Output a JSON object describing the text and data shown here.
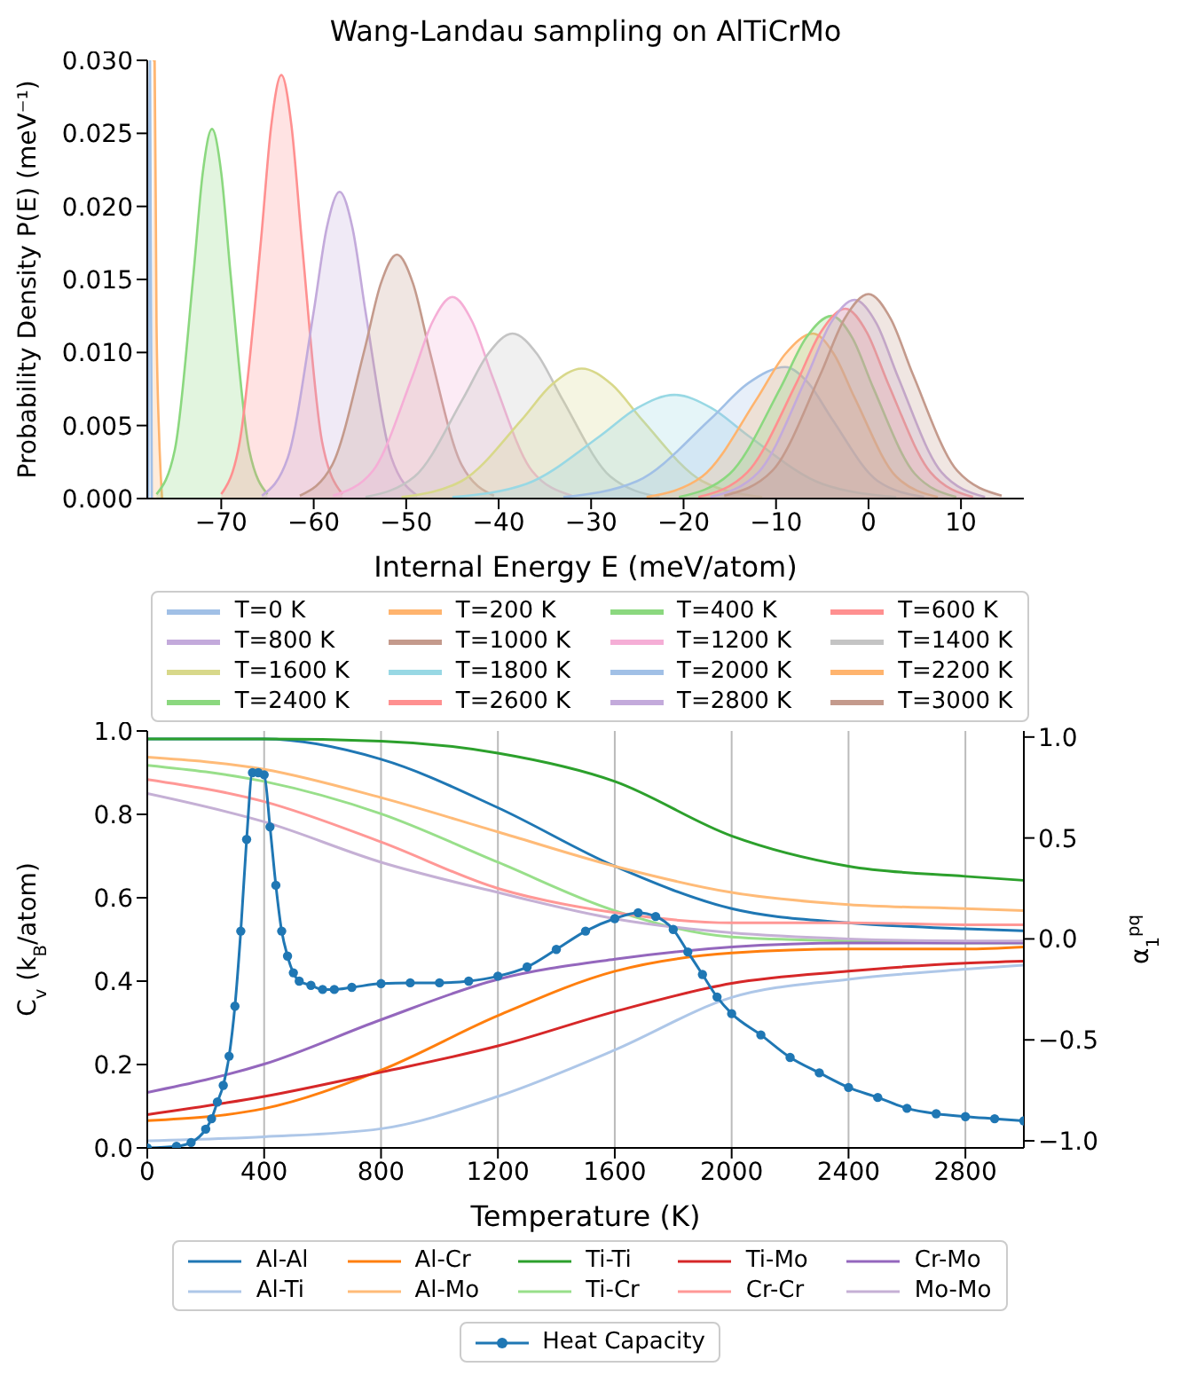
{
  "chart_data": [
    {
      "type": "area",
      "title": "Wang-Landau sampling on AlTiCrMo",
      "xlabel": "Internal Energy E (meV/atom)",
      "ylabel": "Probability Density P(E) (meV⁻¹)",
      "xlim": [
        -78,
        16.8
      ],
      "ylim": [
        0,
        0.03
      ],
      "xticks": [
        {
          "value": -70,
          "label": "−70"
        },
        {
          "value": -60,
          "label": "−60"
        },
        {
          "value": -50,
          "label": "−50"
        },
        {
          "value": -40,
          "label": "−40"
        },
        {
          "value": -30,
          "label": "−30"
        },
        {
          "value": -20,
          "label": "−20"
        },
        {
          "value": -10,
          "label": "−10"
        },
        0,
        10
      ],
      "yticks": [
        {
          "value": 0,
          "label": "0.000"
        },
        {
          "value": 0.005,
          "label": "0.005"
        },
        {
          "value": 0.01,
          "label": "0.010"
        },
        {
          "value": 0.015,
          "label": "0.015"
        },
        {
          "value": 0.02,
          "label": "0.020"
        },
        {
          "value": 0.025,
          "label": "0.025"
        },
        {
          "value": 0.03,
          "label": "0.030"
        }
      ],
      "legend": "bottom",
      "series": [
        {
          "name": "T=0 K",
          "color": "#a1c0e6",
          "x": [
            -77.9,
            -77.7,
            -77.5
          ],
          "values": [
            0,
            0.03,
            0
          ]
        },
        {
          "name": "T=200 K",
          "color": "#ffb46e",
          "x": [
            -77.4,
            -77.2,
            -77,
            -76.7,
            -76.4
          ],
          "values": [
            0.03,
            0.03,
            0.012,
            0.004,
            0
          ]
        },
        {
          "name": "T=400 K",
          "color": "#8bd87f",
          "x": [
            -77,
            -75,
            -73,
            -72,
            -71,
            -70,
            -69,
            -67,
            -65
          ],
          "values": [
            0.0003,
            0.0034,
            0.0154,
            0.0223,
            0.0253,
            0.0223,
            0.0154,
            0.0034,
            0.0003
          ]
        },
        {
          "name": "T=600 K",
          "color": "#ff9090",
          "x": [
            -70,
            -68,
            -65.7,
            -64.6,
            -63.5,
            -62.4,
            -61.3,
            -59.1,
            -56.9
          ],
          "values": [
            0.0003,
            0.0039,
            0.0177,
            0.0255,
            0.029,
            0.0255,
            0.0177,
            0.0039,
            0.0003
          ]
        },
        {
          "name": "T=800 K",
          "color": "#c3aadb",
          "x": [
            -65.6,
            -62.8,
            -60,
            -58.6,
            -57.2,
            -55.8,
            -54.4,
            -51.6,
            -48.8
          ],
          "values": [
            0.0002,
            0.0028,
            0.0128,
            0.0185,
            0.021,
            0.0185,
            0.0128,
            0.0028,
            0.0002
          ]
        },
        {
          "name": "T=1000 K",
          "color": "#c49a8c",
          "x": [
            -61.5,
            -58,
            -54.5,
            -52.75,
            -51,
            -49.25,
            -47.5,
            -44,
            -40.5
          ],
          "values": [
            0.0002,
            0.0023,
            0.0102,
            0.0147,
            0.0167,
            0.0147,
            0.0102,
            0.0023,
            0.0002
          ]
        },
        {
          "name": "T=1200 K",
          "color": "#f5aed6",
          "x": [
            -57.9,
            -53.6,
            -49.3,
            -47.15,
            -45,
            -42.85,
            -40.7,
            -36.4,
            -32.1
          ],
          "values": [
            0.0002,
            0.0019,
            0.0084,
            0.0121,
            0.0138,
            0.0121,
            0.0084,
            0.0019,
            0.0002
          ]
        },
        {
          "name": "T=1400 K",
          "color": "#c4c4c4",
          "x": [
            -54.4,
            -49.1,
            -43.8,
            -41.15,
            -38.5,
            -35.85,
            -33.2,
            -27.9,
            -22.6
          ],
          "values": [
            0.0001,
            0.0015,
            0.0069,
            0.0099,
            0.0113,
            0.0099,
            0.0069,
            0.0015,
            0.0001
          ]
        },
        {
          "name": "T=1600 K",
          "color": "#d8d88a",
          "x": [
            -50.5,
            -44,
            -37.5,
            -34.25,
            -31,
            -27.75,
            -24.5,
            -18,
            -11.5
          ],
          "values": [
            0.0001,
            0.0012,
            0.0054,
            0.0078,
            0.0089,
            0.0078,
            0.0054,
            0.0012,
            0.0001
          ]
        },
        {
          "name": "T=1800 K",
          "color": "#98d8e4",
          "x": [
            -45,
            -37,
            -29,
            -25,
            -21,
            -17,
            -13,
            -5,
            3
          ],
          "values": [
            0.0001,
            0.001,
            0.0043,
            0.0062,
            0.0071,
            0.0062,
            0.0043,
            0.001,
            0.0001
          ]
        },
        {
          "name": "T=2000 K",
          "color": "#a1c0e6",
          "x": [
            -33,
            -25,
            -17,
            -13,
            -9,
            -6.5,
            -4,
            1,
            6
          ],
          "values": [
            0.0001,
            0.0012,
            0.0055,
            0.0079,
            0.009,
            0.0079,
            0.0055,
            0.0012,
            0.0001
          ]
        },
        {
          "name": "T=2200 K",
          "color": "#ffb46e",
          "x": [
            -24,
            -18,
            -12,
            -9,
            -6,
            -3.75,
            -1.5,
            3,
            7.5
          ],
          "values": [
            0.0001,
            0.0015,
            0.0069,
            0.0099,
            0.0113,
            0.0099,
            0.0069,
            0.0015,
            0.0001
          ]
        },
        {
          "name": "T=2400 K",
          "color": "#8bd87f",
          "x": [
            -20.5,
            -15,
            -9.5,
            -6.75,
            -4,
            -1.75,
            0.5,
            5,
            9.5
          ],
          "values": [
            0.0001,
            0.0017,
            0.0076,
            0.011,
            0.0125,
            0.011,
            0.0076,
            0.0017,
            0.0001
          ]
        },
        {
          "name": "T=2600 K",
          "color": "#ff9090",
          "x": [
            -18.4,
            -13.1,
            -7.8,
            -5.15,
            -2.5,
            -0.2,
            2.1,
            6.7,
            11.3
          ],
          "values": [
            0.0001,
            0.0018,
            0.0079,
            0.0114,
            0.013,
            0.0114,
            0.0079,
            0.0018,
            0.0001
          ]
        },
        {
          "name": "T=2800 K",
          "color": "#c3aadb",
          "x": [
            -17.1,
            -11.9,
            -6.7,
            -4.1,
            -1.5,
            0.85,
            3.2,
            7.9,
            12.6
          ],
          "values": [
            0.0001,
            0.0018,
            0.0083,
            0.012,
            0.0136,
            0.012,
            0.0083,
            0.0018,
            0.0001
          ]
        },
        {
          "name": "T=3000 K",
          "color": "#c49a8c",
          "x": [
            -15.6,
            -10.4,
            -5.2,
            -2.6,
            0,
            2.4,
            4.8,
            9.6,
            14.4
          ],
          "values": [
            0.0002,
            0.0019,
            0.0085,
            0.0123,
            0.014,
            0.0123,
            0.0085,
            0.0019,
            0.0002
          ]
        }
      ]
    },
    {
      "type": "line",
      "xlabel": "Temperature (K)",
      "ylabel": "C$_{v}$ (k$_{B}$/atom)",
      "y2label": "α$_{1}$$^{pq}$",
      "xlim": [
        0,
        3000
      ],
      "ylim": [
        0,
        1
      ],
      "y2lim": [
        -1.035,
        1.03
      ],
      "xticks": [
        0,
        400,
        800,
        1200,
        1600,
        2000,
        2400,
        2800
      ],
      "yticks": [
        {
          "value": 0,
          "label": "0.0"
        },
        {
          "value": 0.2,
          "label": "0.2"
        },
        {
          "value": 0.4,
          "label": "0.4"
        },
        {
          "value": 0.6,
          "label": "0.6"
        },
        {
          "value": 0.8,
          "label": "0.8"
        },
        {
          "value": 1,
          "label": "1.0"
        }
      ],
      "y2ticks": [
        {
          "value": -1,
          "label": "−1.0"
        },
        {
          "value": -0.5,
          "label": "−0.5"
        },
        {
          "value": 0,
          "label": "0.0"
        },
        {
          "value": 0.5,
          "label": "0.5"
        },
        {
          "value": 1,
          "label": "1.0"
        }
      ],
      "grid": "x",
      "legend": "bottom",
      "x": [
        0,
        400,
        800,
        1200,
        1600,
        2000,
        2400,
        2800,
        3000
      ],
      "series": [
        {
          "name": "Al-Al",
          "color": "#1f77b4",
          "axis": "y2",
          "values": [
            0.99,
            0.99,
            0.89,
            0.65,
            0.36,
            0.15,
            0.08,
            0.05,
            0.04
          ]
        },
        {
          "name": "Al-Ti",
          "color": "#aec7e8",
          "axis": "y2",
          "values": [
            -1.0,
            -0.98,
            -0.94,
            -0.78,
            -0.55,
            -0.29,
            -0.2,
            -0.15,
            -0.13
          ]
        },
        {
          "name": "Al-Cr",
          "color": "#ff7f0e",
          "axis": "y2",
          "values": [
            -0.9,
            -0.84,
            -0.65,
            -0.38,
            -0.16,
            -0.07,
            -0.05,
            -0.05,
            -0.04
          ]
        },
        {
          "name": "Al-Mo",
          "color": "#ffbb78",
          "axis": "y2",
          "values": [
            0.9,
            0.84,
            0.7,
            0.53,
            0.36,
            0.23,
            0.17,
            0.15,
            0.14
          ]
        },
        {
          "name": "Ti-Ti",
          "color": "#2ca02c",
          "axis": "y2",
          "values": [
            0.99,
            0.99,
            0.98,
            0.92,
            0.78,
            0.51,
            0.36,
            0.31,
            0.29
          ]
        },
        {
          "name": "Ti-Cr",
          "color": "#98df8a",
          "axis": "y2",
          "values": [
            0.86,
            0.78,
            0.62,
            0.38,
            0.14,
            0.01,
            -0.01,
            -0.02,
            -0.02
          ]
        },
        {
          "name": "Ti-Mo",
          "color": "#d62728",
          "axis": "y2",
          "values": [
            -0.87,
            -0.78,
            -0.66,
            -0.53,
            -0.36,
            -0.22,
            -0.16,
            -0.12,
            -0.11
          ]
        },
        {
          "name": "Cr-Cr",
          "color": "#ff9896",
          "axis": "y2",
          "values": [
            0.79,
            0.68,
            0.48,
            0.25,
            0.13,
            0.08,
            0.08,
            0.07,
            0.07
          ]
        },
        {
          "name": "Cr-Mo",
          "color": "#9467bd",
          "axis": "y2",
          "values": [
            -0.76,
            -0.62,
            -0.4,
            -0.2,
            -0.1,
            -0.04,
            -0.02,
            -0.02,
            -0.02
          ]
        },
        {
          "name": "Mo-Mo",
          "color": "#c5b0d5",
          "axis": "y2",
          "values": [
            0.72,
            0.58,
            0.38,
            0.23,
            0.1,
            0.03,
            0.0,
            -0.01,
            -0.01
          ]
        },
        {
          "name": "Heat Capacity",
          "color": "#1f77b4",
          "axis": "y",
          "marker": "circle",
          "x": [
            0,
            100,
            150,
            200,
            220,
            240,
            260,
            280,
            300,
            320,
            340,
            360,
            380,
            400,
            420,
            440,
            460,
            480,
            500,
            520,
            560,
            600,
            640,
            700,
            800,
            900,
            1000,
            1100,
            1200,
            1300,
            1400,
            1500,
            1600,
            1680,
            1740,
            1800,
            1850,
            1900,
            1950,
            2000,
            2100,
            2200,
            2300,
            2400,
            2500,
            2600,
            2700,
            2800,
            2900,
            3000
          ],
          "values": [
            0,
            0.004,
            0.013,
            0.045,
            0.07,
            0.11,
            0.15,
            0.22,
            0.34,
            0.52,
            0.74,
            0.9,
            0.9,
            0.895,
            0.77,
            0.63,
            0.52,
            0.46,
            0.42,
            0.4,
            0.39,
            0.38,
            0.38,
            0.385,
            0.394,
            0.396,
            0.396,
            0.4,
            0.412,
            0.434,
            0.476,
            0.52,
            0.55,
            0.564,
            0.555,
            0.524,
            0.47,
            0.416,
            0.362,
            0.322,
            0.271,
            0.217,
            0.18,
            0.145,
            0.121,
            0.095,
            0.082,
            0.075,
            0.07,
            0.065
          ]
        }
      ]
    }
  ]
}
